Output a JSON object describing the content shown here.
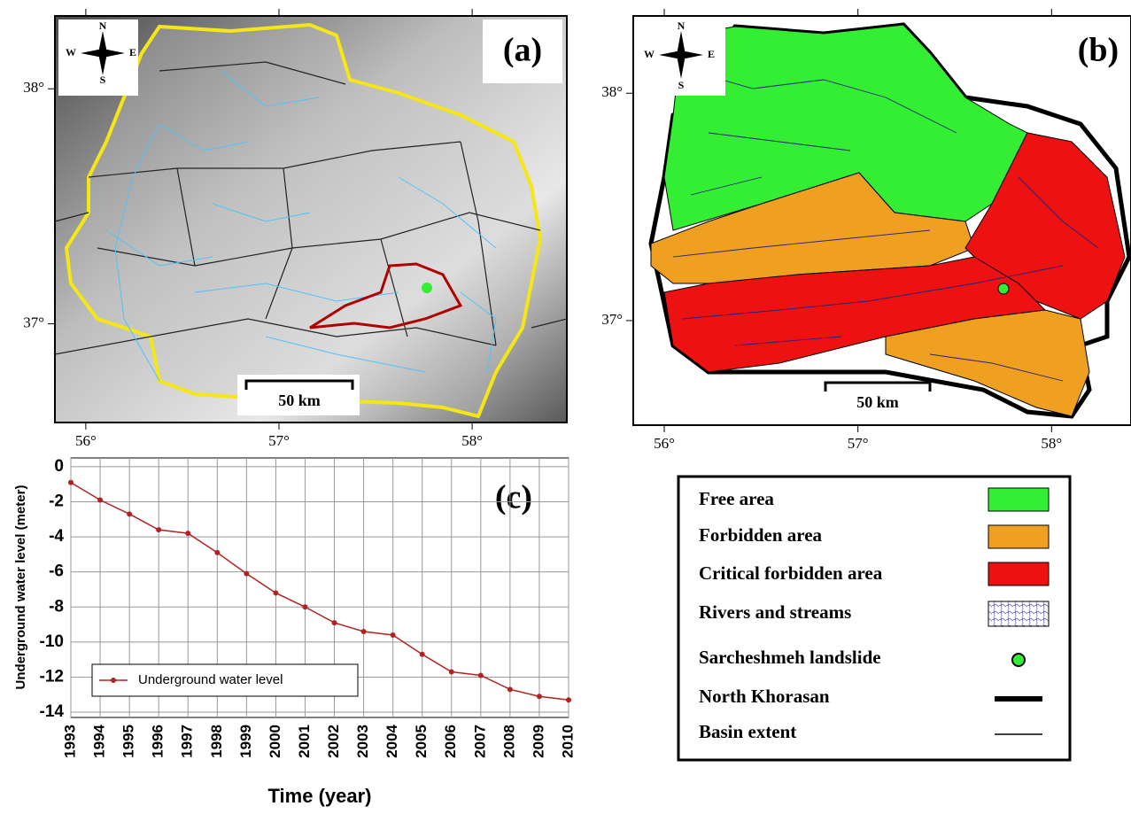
{
  "chart_data": {
    "type": "line",
    "annotation": "(c)",
    "xlabel": "Time (year)",
    "ylabel": "Underground water level (meter)",
    "x": [
      1993,
      1994,
      1995,
      1996,
      1997,
      1998,
      1999,
      2000,
      2001,
      2002,
      2003,
      2004,
      2005,
      2006,
      2007,
      2008,
      2009,
      2010
    ],
    "series": [
      {
        "name": "Underground water level",
        "color": "#b22222",
        "values": [
          -0.9,
          -1.9,
          -2.7,
          -3.6,
          -3.8,
          -4.9,
          -6.1,
          -7.2,
          -8.0,
          -8.9,
          -9.4,
          -9.6,
          -10.7,
          -11.7,
          -11.9,
          -12.7,
          -13.1,
          -13.3
        ]
      }
    ],
    "xlim": [
      1993,
      2010
    ],
    "xticks": [
      1993,
      1994,
      1995,
      1996,
      1997,
      1998,
      1999,
      2000,
      2001,
      2002,
      2003,
      2004,
      2005,
      2006,
      2007,
      2008,
      2009,
      2010
    ],
    "ylim": [
      -14.3,
      0.5
    ],
    "yticks": [
      0,
      -2,
      -4,
      -6,
      -8,
      -10,
      -12,
      -14
    ],
    "grid": true,
    "legend": "lower-left"
  },
  "maps": [
    {
      "label": "(a)",
      "scale": "50 km",
      "compass": [
        "N",
        "S",
        "W",
        "E"
      ],
      "xlim": [
        55.84,
        58.49
      ],
      "ylim": [
        36.58,
        38.31
      ],
      "xticks": [
        {
          "value": 56,
          "label": "56°"
        },
        {
          "value": 57,
          "label": "57°"
        },
        {
          "value": 58,
          "label": "58°"
        }
      ],
      "yticks": [
        {
          "value": 37,
          "label": "37°"
        },
        {
          "value": 38,
          "label": "38°"
        }
      ]
    },
    {
      "label": "(b)",
      "scale": "50 km",
      "compass": [
        "N",
        "S",
        "W",
        "E"
      ],
      "xlim": [
        55.84,
        58.41
      ],
      "ylim": [
        36.54,
        38.34
      ],
      "xticks": [
        {
          "value": 56,
          "label": "56°"
        },
        {
          "value": 57,
          "label": "57°"
        },
        {
          "value": 58,
          "label": "58°"
        }
      ],
      "yticks": [
        {
          "value": 37,
          "label": "37°"
        },
        {
          "value": 38,
          "label": "38°"
        }
      ]
    }
  ],
  "legend": {
    "items": [
      {
        "label": "Free area",
        "color": "#33ee33"
      },
      {
        "label": "Forbidden area",
        "color": "#f0a020"
      },
      {
        "label": "Critical forbidden area",
        "color": "#ee1111"
      },
      {
        "label": "Rivers and streams"
      },
      {
        "label": "Sarcheshmeh landslide"
      },
      {
        "label": "North Khorasan"
      },
      {
        "label": "Basin extent"
      }
    ]
  }
}
